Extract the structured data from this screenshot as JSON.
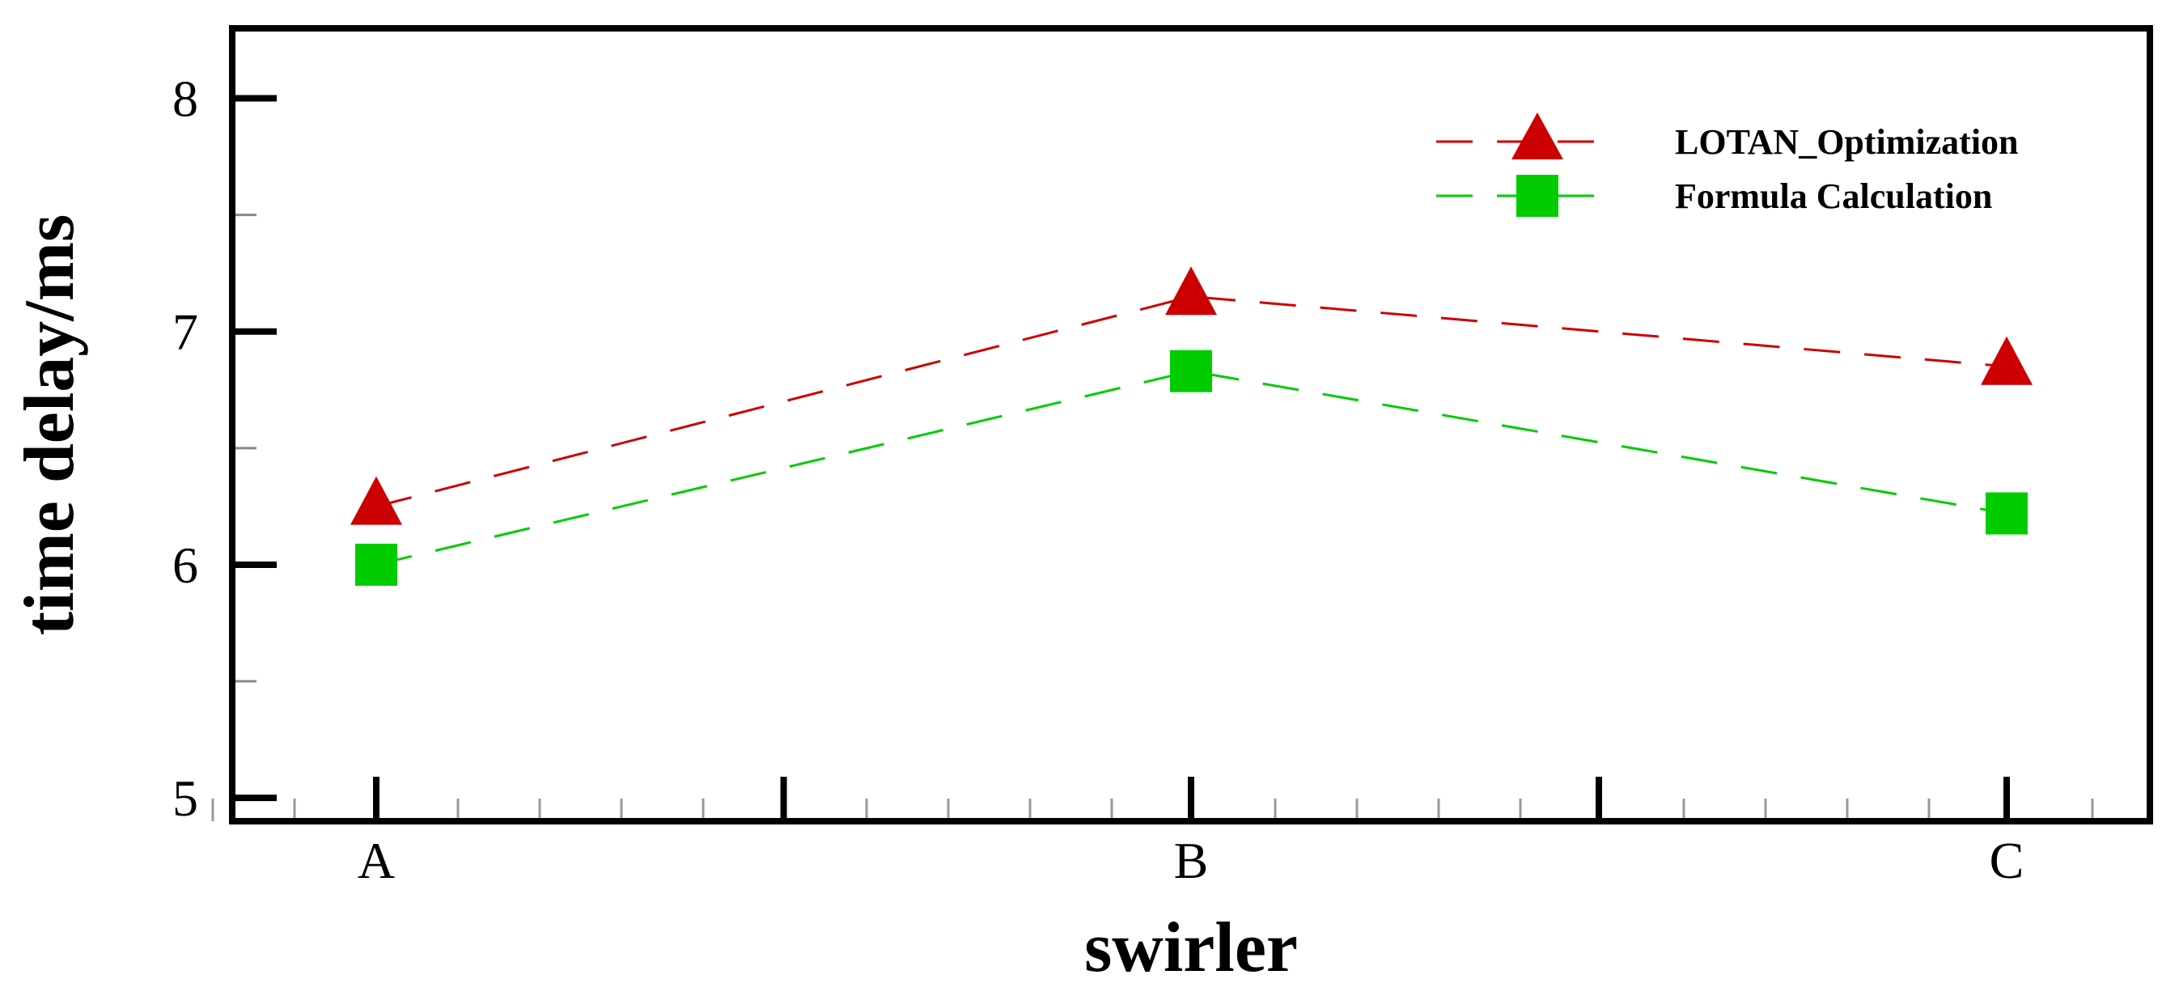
{
  "chart_data": {
    "type": "line",
    "xlabel": "swirler",
    "ylabel": "time delay/ms",
    "categories": [
      "A",
      "B",
      "C"
    ],
    "ylim": [
      4.9,
      8.3
    ],
    "yticks": [
      "5",
      "6",
      "7",
      "8"
    ],
    "grid": false,
    "legend_position": "top-right",
    "series": [
      {
        "name": "LOTAN_Optimization",
        "values": [
          6.25,
          7.15,
          6.85
        ],
        "color": "#cc0000",
        "marker": "triangle",
        "line": "dashed"
      },
      {
        "name": "Formula Calculation",
        "values": [
          6.0,
          6.83,
          6.22
        ],
        "color": "#00cc00",
        "marker": "square",
        "line": "dashed"
      }
    ]
  }
}
